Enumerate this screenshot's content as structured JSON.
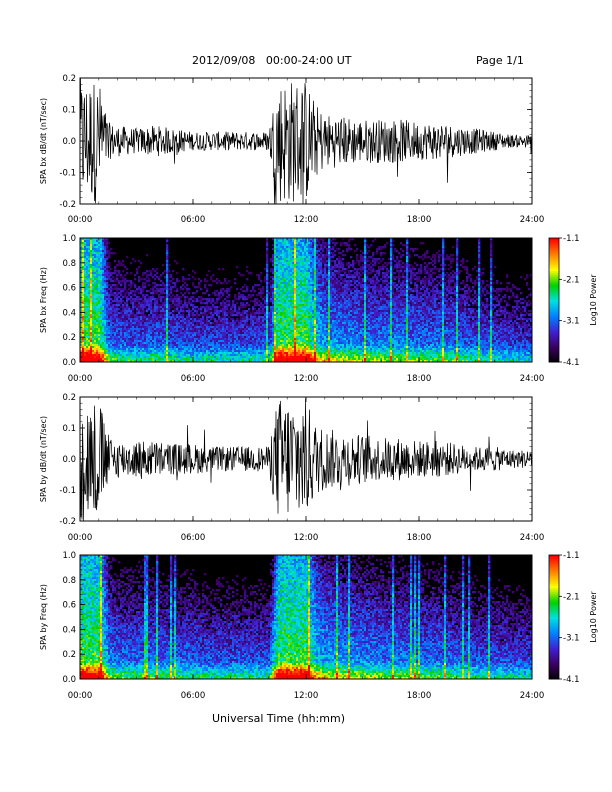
{
  "header": {
    "date_range": "2012/09/08   00:00-24:00 UT",
    "page": "Page 1/1"
  },
  "xlabel": "Universal Time (hh:mm)",
  "colors": {
    "trace": "#000000",
    "colorbar": [
      "#000000",
      "#3a0060",
      "#4020d0",
      "#0080ff",
      "#00e0e0",
      "#00d000",
      "#ffff00",
      "#ff8000",
      "#ff0000"
    ]
  },
  "chart_data": [
    {
      "type": "line",
      "ylabel": "SPA bx dB/dt (nT/sec)",
      "ylim": [
        -0.2,
        0.2
      ],
      "yticks": [
        "0.2",
        "0.1",
        "0.0",
        "-0.1",
        "-0.2"
      ],
      "xticks": [
        "00:00",
        "06:00",
        "12:00",
        "18:00",
        "24:00"
      ],
      "xlim_hours": [
        0,
        24
      ],
      "envelope": {
        "x_hours": [
          0,
          0.5,
          1,
          1.5,
          2,
          3,
          4,
          5,
          6,
          7,
          8,
          9,
          10,
          10.5,
          11,
          12,
          12.5,
          13,
          14,
          15,
          16,
          17,
          18,
          19,
          20,
          21,
          22,
          23,
          24
        ],
        "amplitude": [
          0.2,
          0.2,
          0.2,
          0.06,
          0.05,
          0.04,
          0.05,
          0.04,
          0.03,
          0.03,
          0.03,
          0.03,
          0.03,
          0.2,
          0.2,
          0.2,
          0.12,
          0.09,
          0.08,
          0.07,
          0.07,
          0.07,
          0.06,
          0.06,
          0.05,
          0.04,
          0.03,
          0.02,
          0.02
        ]
      }
    },
    {
      "type": "heatmap",
      "ylabel": "SPA bx Freq (Hz)",
      "ylim": [
        0.0,
        1.0
      ],
      "yticks": [
        "1.0",
        "0.8",
        "0.6",
        "0.4",
        "0.2",
        "0.0"
      ],
      "xticks": [
        "00:00",
        "06:00",
        "12:00",
        "18:00",
        "24:00"
      ],
      "colorbar": {
        "label": "Log10 Power",
        "ticks": [
          "-1.1",
          "-2.1",
          "-3.1",
          "-4.1"
        ],
        "range": [
          -4.1,
          -1.1
        ]
      }
    },
    {
      "type": "line",
      "ylabel": "SPA by dB/dt (nT/sec)",
      "ylim": [
        -0.2,
        0.2
      ],
      "yticks": [
        "0.2",
        "0.1",
        "0.0",
        "-0.1",
        "-0.2"
      ],
      "xticks": [
        "00:00",
        "06:00",
        "12:00",
        "18:00",
        "24:00"
      ],
      "xlim_hours": [
        0,
        24
      ],
      "envelope": {
        "x_hours": [
          0,
          0.5,
          1,
          1.5,
          2,
          3,
          4,
          5,
          6,
          7,
          8,
          9,
          10,
          10.5,
          11,
          12,
          12.5,
          13,
          14,
          15,
          16,
          17,
          18,
          19,
          20,
          21,
          22,
          23,
          24
        ],
        "amplitude": [
          0.2,
          0.2,
          0.2,
          0.08,
          0.06,
          0.06,
          0.06,
          0.05,
          0.05,
          0.04,
          0.04,
          0.04,
          0.04,
          0.2,
          0.2,
          0.2,
          0.12,
          0.1,
          0.09,
          0.08,
          0.07,
          0.07,
          0.06,
          0.06,
          0.05,
          0.04,
          0.04,
          0.03,
          0.03
        ]
      }
    },
    {
      "type": "heatmap",
      "ylabel": "SPA by Freq (Hz)",
      "ylim": [
        0.0,
        1.0
      ],
      "yticks": [
        "1.0",
        "0.8",
        "0.6",
        "0.4",
        "0.2",
        "0.0"
      ],
      "xticks": [
        "00:00",
        "06:00",
        "12:00",
        "18:00",
        "24:00"
      ],
      "colorbar": {
        "label": "Log10 Power",
        "ticks": [
          "-1.1",
          "-2.1",
          "-3.1",
          "-4.1"
        ],
        "range": [
          -4.1,
          -1.1
        ]
      }
    }
  ]
}
